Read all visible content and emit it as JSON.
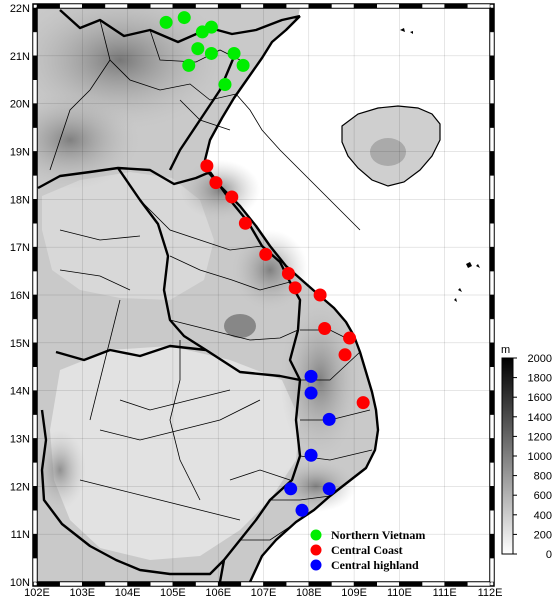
{
  "map": {
    "extent": {
      "lon_min": 102,
      "lon_max": 112,
      "lat_min": 10,
      "lat_max": 22
    },
    "lon_labels": [
      "102E",
      "103E",
      "104E",
      "105E",
      "106E",
      "107E",
      "108E",
      "109E",
      "110E",
      "111E",
      "112E"
    ],
    "lat_labels": [
      "10N",
      "11N",
      "12N",
      "13N",
      "14N",
      "15N",
      "16N",
      "17N",
      "18N",
      "19N",
      "20N",
      "21N",
      "22N"
    ]
  },
  "colorbar": {
    "unit": "m",
    "labels": [
      "0",
      "200",
      "400",
      "600",
      "800",
      "1000",
      "1200",
      "1400",
      "1600",
      "1800",
      "2000"
    ],
    "range": [
      0,
      2000
    ],
    "color_low": "#ffffff",
    "color_high": "#000000"
  },
  "legend": [
    {
      "label": "Northern Vietnam",
      "color": "#00ee00"
    },
    {
      "label": "Central Coast",
      "color": "#ff0000"
    },
    {
      "label": "Central highland",
      "color": "#0000ff"
    }
  ],
  "stations": {
    "northern": [
      [
        104.85,
        21.7
      ],
      [
        105.25,
        21.8
      ],
      [
        105.65,
        21.5
      ],
      [
        105.85,
        21.6
      ],
      [
        105.55,
        21.15
      ],
      [
        105.85,
        21.05
      ],
      [
        105.35,
        20.8
      ],
      [
        106.35,
        21.05
      ],
      [
        106.55,
        20.8
      ],
      [
        106.15,
        20.4
      ]
    ],
    "central_coast": [
      [
        105.75,
        18.7
      ],
      [
        105.95,
        18.35
      ],
      [
        106.3,
        18.05
      ],
      [
        106.6,
        17.5
      ],
      [
        107.05,
        16.85
      ],
      [
        107.55,
        16.45
      ],
      [
        107.7,
        16.15
      ],
      [
        108.25,
        16.0
      ],
      [
        108.35,
        15.3
      ],
      [
        108.9,
        15.1
      ],
      [
        108.8,
        14.75
      ],
      [
        109.2,
        13.75
      ]
    ],
    "central_highland": [
      [
        108.05,
        14.3
      ],
      [
        108.05,
        13.95
      ],
      [
        108.45,
        13.4
      ],
      [
        108.05,
        12.65
      ],
      [
        107.6,
        11.95
      ],
      [
        108.45,
        11.95
      ],
      [
        107.85,
        11.5
      ]
    ]
  }
}
